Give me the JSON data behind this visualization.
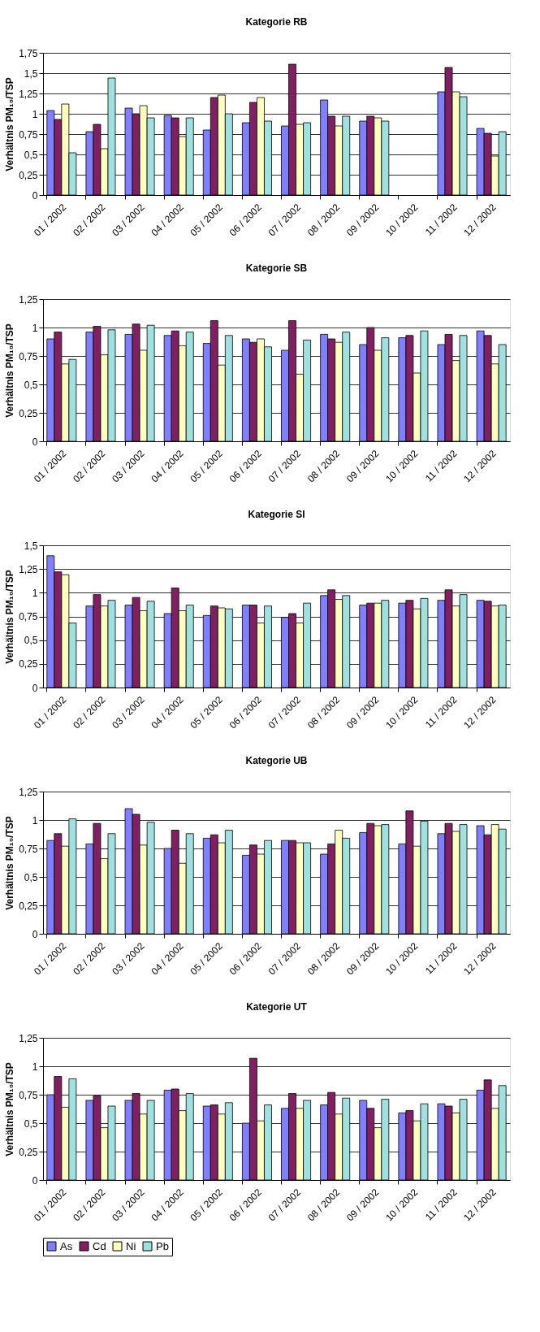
{
  "chart_data": [
    {
      "type": "bar",
      "title": "Kategorie RB",
      "ylabel": "Verhältnis PM₁₀/TSP",
      "grid": "y",
      "categories": [
        "01 / 2002",
        "02 / 2002",
        "03 / 2002",
        "04 / 2002",
        "05 / 2002",
        "06 / 2002",
        "07 / 2002",
        "08 / 2002",
        "09 / 2002",
        "10 / 2002",
        "11 / 2002",
        "12 / 2002"
      ],
      "ylim": [
        0,
        1.75
      ],
      "yticks": [
        {
          "value": 0,
          "label": "0"
        },
        {
          "value": 0.25,
          "label": "0,25"
        },
        {
          "value": 0.5,
          "label": "0,5"
        },
        {
          "value": 0.75,
          "label": "0,75"
        },
        {
          "value": 1,
          "label": "1"
        },
        {
          "value": 1.25,
          "label": "1,25"
        },
        {
          "value": 1.5,
          "label": "1,5"
        },
        {
          "value": 1.75,
          "label": "1,75"
        }
      ],
      "series": [
        {
          "color": "#8080ff",
          "values": [
            1.04,
            0.78,
            1.07,
            0.98,
            0.8,
            0.89,
            0.85,
            1.17,
            0.91,
            null,
            1.27,
            0.82
          ]
        },
        {
          "color": "#802060",
          "values": [
            0.93,
            0.87,
            1.0,
            0.95,
            1.2,
            1.14,
            1.61,
            0.97,
            0.97,
            null,
            1.57,
            0.76
          ]
        },
        {
          "color": "#ffffc0",
          "values": [
            1.12,
            0.57,
            1.1,
            0.72,
            1.23,
            1.2,
            0.87,
            0.85,
            0.95,
            null,
            1.27,
            0.48
          ]
        },
        {
          "color": "#a0e0e0",
          "values": [
            0.52,
            1.44,
            0.95,
            0.95,
            1.0,
            0.91,
            0.89,
            0.97,
            0.91,
            null,
            1.21,
            0.78
          ]
        }
      ]
    },
    {
      "type": "bar",
      "title": "Kategorie SB",
      "ylabel": "Verhältnis PM₁₀/TSP",
      "grid": "y",
      "categories": [
        "01 / 2002",
        "02 / 2002",
        "03 / 2002",
        "04 / 2002",
        "05 / 2002",
        "06 / 2002",
        "07 / 2002",
        "08 / 2002",
        "09 / 2002",
        "10 / 2002",
        "11 / 2002",
        "12 / 2002"
      ],
      "ylim": [
        0,
        1.25
      ],
      "yticks": [
        {
          "value": 0,
          "label": "0"
        },
        {
          "value": 0.25,
          "label": "0,25"
        },
        {
          "value": 0.5,
          "label": "0,5"
        },
        {
          "value": 0.75,
          "label": "0,75"
        },
        {
          "value": 1,
          "label": "1"
        },
        {
          "value": 1.25,
          "label": "1,25"
        }
      ],
      "series": [
        {
          "color": "#8080ff",
          "values": [
            0.9,
            0.96,
            0.94,
            0.93,
            0.86,
            0.9,
            0.8,
            0.94,
            0.85,
            0.91,
            0.85,
            0.97
          ]
        },
        {
          "color": "#802060",
          "values": [
            0.96,
            1.01,
            1.03,
            0.97,
            1.06,
            0.87,
            1.06,
            0.9,
            1.0,
            0.93,
            0.94,
            0.93
          ]
        },
        {
          "color": "#ffffc0",
          "values": [
            0.68,
            0.76,
            0.8,
            0.84,
            0.67,
            0.9,
            0.59,
            0.87,
            0.8,
            0.6,
            0.71,
            0.68
          ]
        },
        {
          "color": "#a0e0e0",
          "values": [
            0.72,
            0.98,
            1.02,
            0.96,
            0.93,
            0.83,
            0.89,
            0.96,
            0.91,
            0.97,
            0.93,
            0.85
          ]
        }
      ]
    },
    {
      "type": "bar",
      "title": "Kategorie SI",
      "ylabel": "Verhältnis PM₁₀/TSP",
      "grid": "y",
      "categories": [
        "01 / 2002",
        "02 / 2002",
        "03 / 2002",
        "04 / 2002",
        "05 / 2002",
        "06 / 2002",
        "07 / 2002",
        "08 / 2002",
        "09 / 2002",
        "10 / 2002",
        "11 / 2002",
        "12 / 2002"
      ],
      "ylim": [
        0,
        1.5
      ],
      "yticks": [
        {
          "value": 0,
          "label": "0"
        },
        {
          "value": 0.25,
          "label": "0,25"
        },
        {
          "value": 0.5,
          "label": "0,5"
        },
        {
          "value": 0.75,
          "label": "0,75"
        },
        {
          "value": 1,
          "label": "1"
        },
        {
          "value": 1.25,
          "label": "1,25"
        },
        {
          "value": 1.5,
          "label": "1,5"
        }
      ],
      "series": [
        {
          "color": "#8080ff",
          "values": [
            1.39,
            0.86,
            0.87,
            0.78,
            0.76,
            0.87,
            0.74,
            0.97,
            0.87,
            0.89,
            0.92,
            0.92
          ]
        },
        {
          "color": "#802060",
          "values": [
            1.22,
            0.98,
            0.95,
            1.05,
            0.86,
            0.87,
            0.78,
            1.03,
            0.89,
            0.92,
            1.03,
            0.91
          ]
        },
        {
          "color": "#ffffc0",
          "values": [
            1.19,
            0.86,
            0.81,
            0.81,
            0.84,
            0.68,
            0.68,
            0.93,
            0.89,
            0.83,
            0.86,
            0.86
          ]
        },
        {
          "color": "#a0e0e0",
          "values": [
            0.68,
            0.92,
            0.91,
            0.87,
            0.83,
            0.86,
            0.89,
            0.97,
            0.92,
            0.94,
            0.98,
            0.87
          ]
        }
      ]
    },
    {
      "type": "bar",
      "title": "Kategorie UB",
      "ylabel": "Verhältnis PM₁₀/TSP",
      "grid": "y",
      "categories": [
        "01 / 2002",
        "02 / 2002",
        "03 / 2002",
        "04 / 2002",
        "05 / 2002",
        "06 / 2002",
        "07 / 2002",
        "08 / 2002",
        "09 / 2002",
        "10 / 2002",
        "11 / 2002",
        "12 / 2002"
      ],
      "ylim": [
        0,
        1.25
      ],
      "yticks": [
        {
          "value": 0,
          "label": "0"
        },
        {
          "value": 0.25,
          "label": "0,25"
        },
        {
          "value": 0.5,
          "label": "0,5"
        },
        {
          "value": 0.75,
          "label": "0,75"
        },
        {
          "value": 1,
          "label": "1"
        },
        {
          "value": 1.25,
          "label": "1,25"
        }
      ],
      "series": [
        {
          "color": "#8080ff",
          "values": [
            0.82,
            0.79,
            1.1,
            0.75,
            0.84,
            0.69,
            0.82,
            0.7,
            0.89,
            0.79,
            0.88,
            0.95
          ]
        },
        {
          "color": "#802060",
          "values": [
            0.88,
            0.97,
            1.05,
            0.91,
            0.87,
            0.78,
            0.82,
            0.79,
            0.97,
            1.08,
            0.97,
            0.87
          ]
        },
        {
          "color": "#ffffc0",
          "values": [
            0.77,
            0.66,
            0.78,
            0.62,
            0.8,
            0.7,
            0.8,
            0.91,
            0.95,
            0.77,
            0.9,
            0.96
          ]
        },
        {
          "color": "#a0e0e0",
          "values": [
            1.01,
            0.88,
            0.98,
            0.88,
            0.91,
            0.82,
            0.8,
            0.84,
            0.96,
            0.99,
            0.96,
            0.92
          ]
        }
      ]
    },
    {
      "type": "bar",
      "title": "Kategorie UT",
      "ylabel": "Verhältnis PM₁₀/TSP",
      "grid": "y",
      "legend": "bottom",
      "categories": [
        "01 / 2002",
        "02 / 2002",
        "03 / 2002",
        "04 / 2002",
        "05 / 2002",
        "06 / 2002",
        "07 / 2002",
        "08 / 2002",
        "09 / 2002",
        "10 / 2002",
        "11 / 2002",
        "12 / 2002"
      ],
      "ylim": [
        0,
        1.25
      ],
      "yticks": [
        {
          "value": 0,
          "label": "0"
        },
        {
          "value": 0.25,
          "label": "0,25"
        },
        {
          "value": 0.5,
          "label": "0,5"
        },
        {
          "value": 0.75,
          "label": "0,75"
        },
        {
          "value": 1,
          "label": "1"
        },
        {
          "value": 1.25,
          "label": "1,25"
        }
      ],
      "series": [
        {
          "name": "As",
          "color": "#8080ff",
          "values": [
            0.75,
            0.7,
            0.7,
            0.79,
            0.65,
            0.5,
            0.63,
            0.66,
            0.7,
            0.59,
            0.67,
            0.79
          ]
        },
        {
          "name": "Cd",
          "color": "#802060",
          "values": [
            0.91,
            0.74,
            0.76,
            0.8,
            0.66,
            1.07,
            0.76,
            0.77,
            0.63,
            0.61,
            0.65,
            0.88
          ]
        },
        {
          "name": "Ni",
          "color": "#ffffc0",
          "values": [
            0.64,
            0.46,
            0.58,
            0.61,
            0.58,
            0.52,
            0.63,
            0.58,
            0.46,
            0.52,
            0.59,
            0.63
          ]
        },
        {
          "name": "Pb",
          "color": "#a0e0e0",
          "values": [
            0.89,
            0.65,
            0.7,
            0.76,
            0.68,
            0.66,
            0.7,
            0.72,
            0.71,
            0.67,
            0.71,
            0.83
          ]
        }
      ]
    }
  ]
}
